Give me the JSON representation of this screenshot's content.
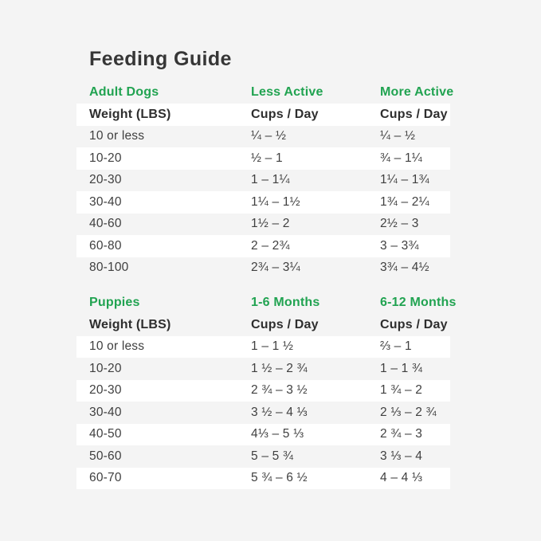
{
  "page": {
    "title": "Feeding Guide",
    "background_color": "#f4f4f4",
    "highlight_row_color": "#ffffff",
    "accent_green": "#21a351",
    "text_color": "#3f3f3f"
  },
  "chart_data": [
    {
      "type": "table",
      "title": "Adult Dogs",
      "column_headers": [
        "Less Active",
        "More Active"
      ],
      "subheaders": [
        "Weight (LBS)",
        "Cups / Day",
        "Cups / Day"
      ],
      "rows": [
        [
          "10 or less",
          "¼ – ½",
          "¼ – ½"
        ],
        [
          "10-20",
          "½ – 1",
          "¾ – 1¼"
        ],
        [
          "20-30",
          "1 – 1¼",
          "1¼ – 1¾"
        ],
        [
          "30-40",
          "1¼ – 1½",
          "1¾ – 2¼"
        ],
        [
          "40-60",
          "1½ – 2",
          "2½ – 3"
        ],
        [
          "60-80",
          "2 – 2¾",
          "3 – 3¾"
        ],
        [
          "80-100",
          "2¾ – 3¼",
          "3¾ – 4½"
        ]
      ]
    },
    {
      "type": "table",
      "title": "Puppies",
      "column_headers": [
        "1-6 Months",
        "6-12 Months"
      ],
      "subheaders": [
        "Weight (LBS)",
        "Cups / Day",
        "Cups / Day"
      ],
      "rows": [
        [
          "10 or less",
          "1 – 1 ½",
          "⅔ – 1"
        ],
        [
          "10-20",
          "1 ½ – 2 ¾",
          "1 – 1 ¾"
        ],
        [
          "20-30",
          "2 ¾ – 3 ½",
          "1 ¾ – 2"
        ],
        [
          "30-40",
          "3 ½ – 4 ⅓",
          "2 ⅓ – 2 ¾"
        ],
        [
          "40-50",
          "4⅓ – 5 ⅓",
          "2 ¾ – 3"
        ],
        [
          "50-60",
          "5 – 5 ¾",
          "3 ⅓ – 4"
        ],
        [
          "60-70",
          "5 ¾ – 6 ½",
          "4 – 4 ⅓"
        ]
      ]
    }
  ]
}
